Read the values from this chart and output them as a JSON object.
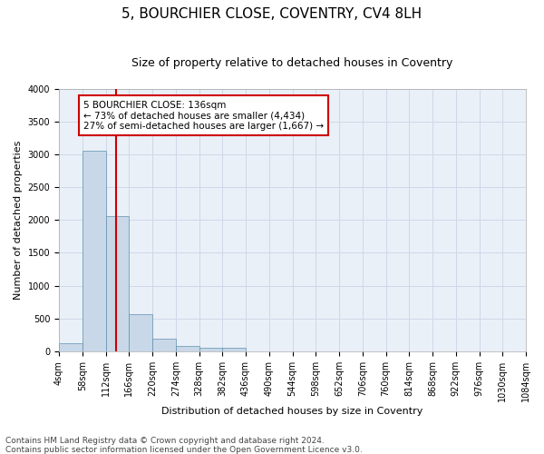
{
  "title": "5, BOURCHIER CLOSE, COVENTRY, CV4 8LH",
  "subtitle": "Size of property relative to detached houses in Coventry",
  "xlabel": "Distribution of detached houses by size in Coventry",
  "ylabel": "Number of detached properties",
  "footnote1": "Contains HM Land Registry data © Crown copyright and database right 2024.",
  "footnote2": "Contains public sector information licensed under the Open Government Licence v3.0.",
  "annotation_line1": "5 BOURCHIER CLOSE: 136sqm",
  "annotation_line2": "← 73% of detached houses are smaller (4,434)",
  "annotation_line3": "27% of semi-detached houses are larger (1,667) →",
  "property_size": 136,
  "bin_edges": [
    4,
    58,
    112,
    166,
    220,
    274,
    328,
    382,
    436,
    490,
    544,
    598,
    652,
    706,
    760,
    814,
    868,
    922,
    976,
    1030,
    1084
  ],
  "bar_heights": [
    130,
    3060,
    2060,
    560,
    190,
    80,
    50,
    50,
    0,
    0,
    0,
    0,
    0,
    0,
    0,
    0,
    0,
    0,
    0,
    0
  ],
  "bar_color": "#c8d8e8",
  "bar_edge_color": "#6090b0",
  "vline_color": "#cc0000",
  "vline_x": 136,
  "ylim": [
    0,
    4000
  ],
  "yticks": [
    0,
    500,
    1000,
    1500,
    2000,
    2500,
    3000,
    3500,
    4000
  ],
  "grid_color": "#d0d8e8",
  "annotation_box_color": "#cc0000",
  "title_fontsize": 11,
  "subtitle_fontsize": 9,
  "axis_label_fontsize": 8,
  "tick_fontsize": 7,
  "annotation_fontsize": 7.5,
  "footnote_fontsize": 6.5
}
